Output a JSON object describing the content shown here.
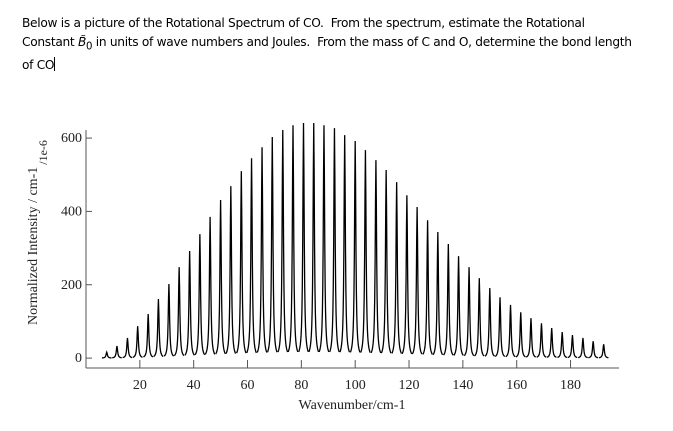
{
  "document": {
    "lines": [
      "Below is a picture of the Rotational Spectrum of CO.  From the spectrum, estimate the Rotational",
      [
        "Constant ",
        "B̃",
        "0",
        " in units of wave numbers and Joules.  From the mass of C and O, determine the bond length"
      ],
      "of CO"
    ]
  },
  "chart_data": {
    "type": "spectrum",
    "xlabel": "Wavenumber/cm-1",
    "ylabel": "Normalized Intensity / cm-1",
    "ylabel_unit": "/1e-6",
    "x": [
      7.7,
      11.5,
      15.4,
      19.2,
      23.1,
      26.9,
      30.8,
      34.6,
      38.5,
      42.3,
      46.1,
      50.0,
      53.8,
      57.7,
      61.5,
      65.4,
      69.2,
      73.1,
      76.9,
      80.8,
      84.6,
      88.4,
      92.3,
      96.1,
      100.0,
      103.8,
      107.7,
      111.5,
      115.4,
      119.2,
      123.0,
      126.9,
      130.7,
      134.6,
      138.4,
      142.3,
      146.1,
      150.0,
      153.8,
      157.7,
      161.5,
      165.3,
      169.2,
      173.0,
      176.9,
      180.7,
      184.6,
      188.4,
      192.3
    ],
    "values": [
      16,
      33,
      55,
      87,
      120,
      161,
      202,
      248,
      292,
      338,
      385,
      431,
      469,
      510,
      545,
      575,
      603,
      622,
      635,
      641,
      641,
      635,
      627,
      608,
      592,
      567,
      540,
      513,
      480,
      444,
      412,
      376,
      344,
      311,
      278,
      248,
      218,
      191,
      166,
      145,
      125,
      109,
      95,
      82,
      71,
      63,
      55,
      46,
      38
    ],
    "color": "#000000",
    "xlim": [
      0,
      198
    ],
    "ylim": [
      -27,
      622
    ],
    "xticks": [
      20,
      40,
      60,
      80,
      100,
      120,
      140,
      160,
      180
    ],
    "yticks": [
      0,
      200,
      400,
      600
    ]
  }
}
